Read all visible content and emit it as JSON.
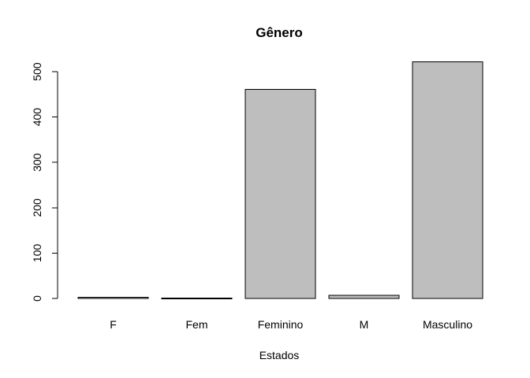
{
  "chart_data": {
    "type": "bar",
    "title": "Gênero",
    "xlabel": "Estados",
    "ylabel": "",
    "categories": [
      "F",
      "Fem",
      "Feminino",
      "M",
      "Masculino"
    ],
    "values": [
      3,
      1,
      461,
      7,
      522
    ],
    "ylim": [
      0,
      530
    ],
    "yticks": [
      0,
      100,
      200,
      300,
      400,
      500
    ],
    "grid": false,
    "bar_color": "#BEBEBE",
    "border_color": "#000000"
  }
}
